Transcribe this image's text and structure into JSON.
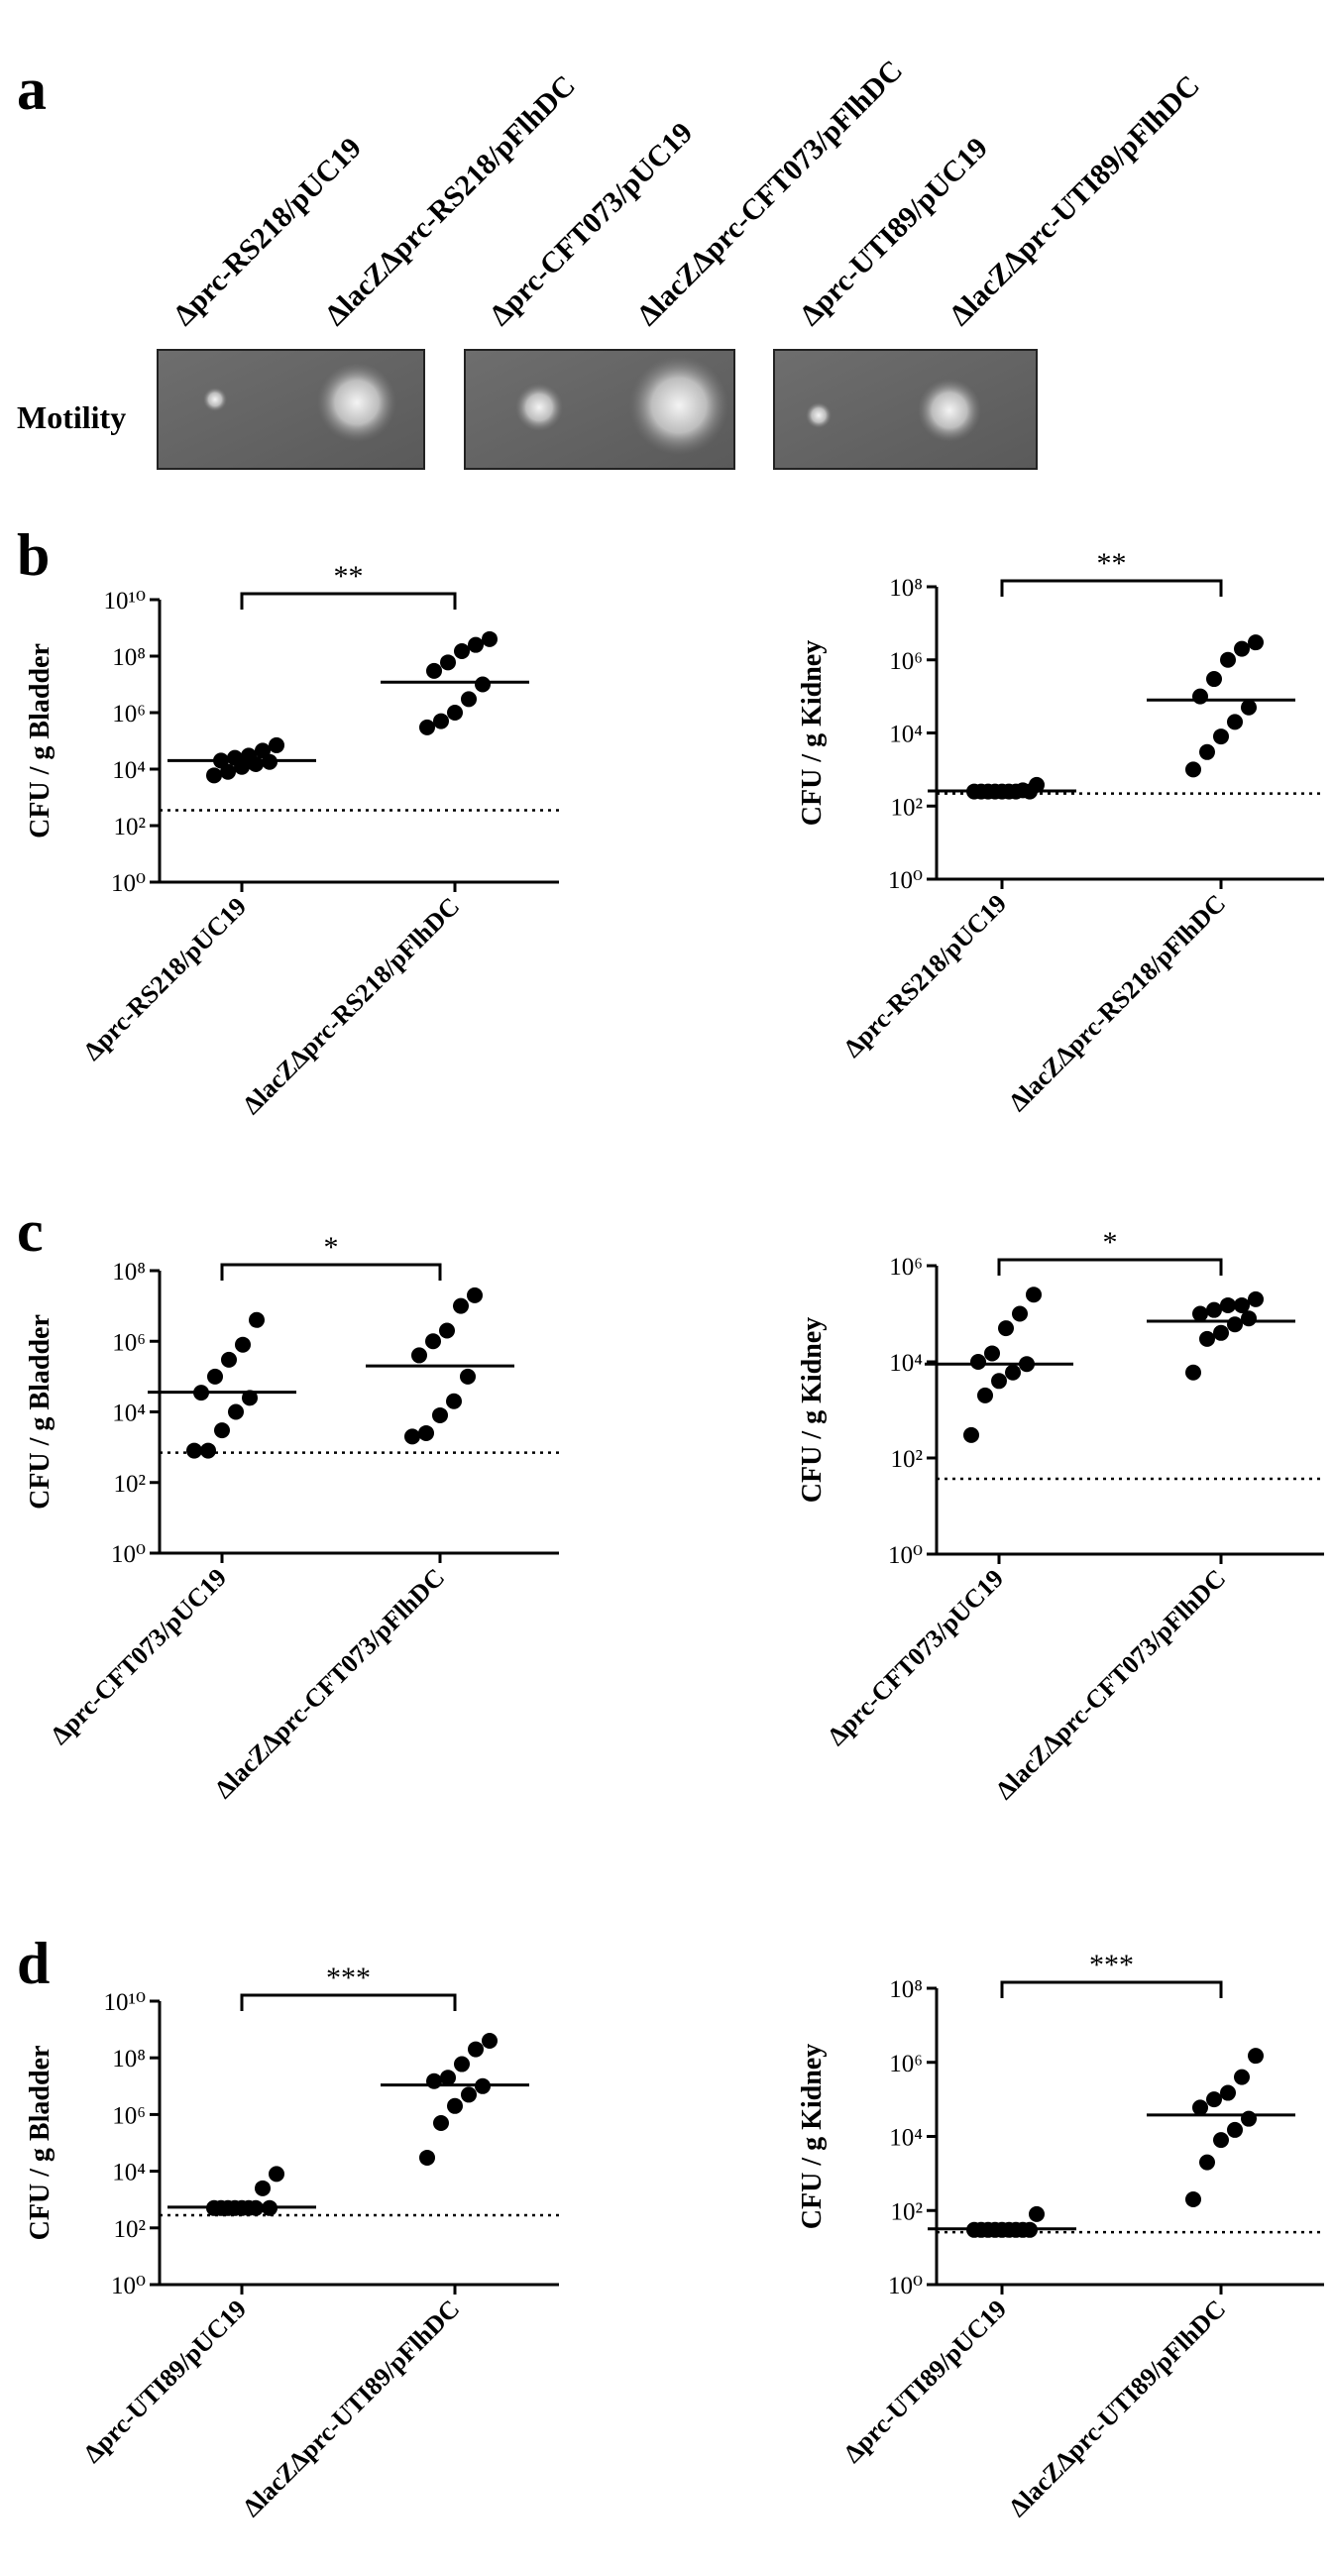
{
  "panel_a": {
    "letter": "a",
    "row_label": "Motility",
    "strains": [
      "Δprc-RS218/pUC19",
      "ΔlacZΔprc-RS218/pFlhDC",
      "Δprc-CFT073/pUC19",
      "ΔlacZΔprc-CFT073/pFlhDC",
      "Δprc-UTI89/pUC19",
      "ΔlacZΔprc-UTI89/pFlhDC"
    ]
  },
  "panel_labels": [
    "b",
    "c",
    "d"
  ],
  "chart_data": [
    {
      "type": "dot",
      "ylabel": "CFU / g Bladder",
      "log_scale": true,
      "color": "#000000",
      "categories": [
        "Δprc-RS218/pUC19",
        "ΔlacZΔprc-RS218/pFlhDC"
      ],
      "values": [
        [
          6000,
          8000,
          12000,
          15000,
          18000,
          20000,
          25000,
          30000,
          45000,
          70000
        ],
        [
          300000,
          500000,
          1000000,
          3000000,
          10000000,
          30000000,
          60000000,
          150000000,
          250000000,
          400000000
        ]
      ],
      "medians": [
        20000,
        12000000
      ],
      "detection_limit": 350,
      "significance": "**",
      "ylim": [
        1,
        10000000000
      ],
      "yticks": [
        {
          "value": 1,
          "label": "10⁰"
        },
        {
          "value": 100,
          "label": "10²"
        },
        {
          "value": 10000,
          "label": "10⁴"
        },
        {
          "value": 1000000,
          "label": "10⁶"
        },
        {
          "value": 100000000,
          "label": "10⁸"
        },
        {
          "value": 10000000000,
          "label": "10¹⁰"
        }
      ]
    },
    {
      "type": "dot",
      "ylabel": "CFU / g Kidney",
      "log_scale": true,
      "color": "#000000",
      "categories": [
        "Δprc-RS218/pUC19",
        "ΔlacZΔprc-RS218/pFlhDC"
      ],
      "values": [
        [
          250,
          250,
          250,
          250,
          250,
          250,
          250,
          250,
          270,
          380
        ],
        [
          1000,
          3000,
          8000,
          20000,
          50000,
          100000,
          300000,
          1000000,
          2000000,
          3000000
        ]
      ],
      "medians": [
        260,
        80000
      ],
      "detection_limit": 220,
      "significance": "**",
      "ylim": [
        1,
        100000000
      ],
      "yticks": [
        {
          "value": 1,
          "label": "10⁰"
        },
        {
          "value": 100,
          "label": "10²"
        },
        {
          "value": 10000,
          "label": "10⁴"
        },
        {
          "value": 1000000,
          "label": "10⁶"
        },
        {
          "value": 100000000,
          "label": "10⁸"
        }
      ]
    },
    {
      "type": "dot",
      "ylabel": "CFU / g Bladder",
      "log_scale": true,
      "color": "#000000",
      "categories": [
        "Δprc-CFT073/pUC19",
        "ΔlacZΔprc-CFT073/pFlhDC"
      ],
      "values": [
        [
          800,
          800,
          3000,
          10000,
          25000,
          35000,
          100000,
          300000,
          800000,
          4000000
        ],
        [
          2000,
          2500,
          8000,
          20000,
          100000,
          400000,
          1000000,
          2000000,
          10000000,
          20000000
        ]
      ],
      "medians": [
        36000,
        200000
      ],
      "detection_limit": 700,
      "significance": "*",
      "ylim": [
        1,
        100000000
      ],
      "yticks": [
        {
          "value": 1,
          "label": "10⁰"
        },
        {
          "value": 100,
          "label": "10²"
        },
        {
          "value": 10000,
          "label": "10⁴"
        },
        {
          "value": 1000000,
          "label": "10⁶"
        },
        {
          "value": 100000000,
          "label": "10⁸"
        }
      ]
    },
    {
      "type": "dot",
      "ylabel": "CFU / g Kidney",
      "log_scale": true,
      "color": "#000000",
      "categories": [
        "Δprc-CFT073/pUC19",
        "ΔlacZΔprc-CFT073/pFlhDC"
      ],
      "values": [
        [
          300,
          2000,
          4000,
          6000,
          9000,
          10000,
          15000,
          50000,
          100000,
          250000
        ],
        [
          6000,
          30000,
          40000,
          60000,
          80000,
          100000,
          120000,
          150000,
          150000,
          200000
        ]
      ],
      "medians": [
        9000,
        70000
      ],
      "detection_limit": 37,
      "significance": "*",
      "ylim": [
        1,
        1000000
      ],
      "yticks": [
        {
          "value": 1,
          "label": "10⁰"
        },
        {
          "value": 100,
          "label": "10²"
        },
        {
          "value": 10000,
          "label": "10⁴"
        },
        {
          "value": 1000000,
          "label": "10⁶"
        }
      ]
    },
    {
      "type": "dot",
      "ylabel": "CFU / g Bladder",
      "log_scale": true,
      "color": "#000000",
      "categories": [
        "Δprc-UTI89/pUC19",
        "ΔlacZΔprc-UTI89/pFlhDC"
      ],
      "values": [
        [
          500,
          500,
          500,
          500,
          500,
          500,
          500,
          500,
          2500,
          8000
        ],
        [
          30000,
          500000,
          2000000,
          5000000,
          10000000,
          15000000,
          20000000,
          60000000,
          200000000,
          400000000
        ]
      ],
      "medians": [
        540,
        11000000
      ],
      "detection_limit": 280,
      "significance": "***",
      "ylim": [
        1,
        10000000000
      ],
      "yticks": [
        {
          "value": 1,
          "label": "10⁰"
        },
        {
          "value": 100,
          "label": "10²"
        },
        {
          "value": 10000,
          "label": "10⁴"
        },
        {
          "value": 1000000,
          "label": "10⁶"
        },
        {
          "value": 100000000,
          "label": "10⁸"
        },
        {
          "value": 10000000000,
          "label": "10¹⁰"
        }
      ]
    },
    {
      "type": "dot",
      "ylabel": "CFU / g Kidney",
      "log_scale": true,
      "color": "#000000",
      "categories": [
        "Δprc-UTI89/pUC19",
        "ΔlacZΔprc-UTI89/pFlhDC"
      ],
      "values": [
        [
          30,
          30,
          30,
          30,
          30,
          30,
          30,
          30,
          30,
          80
        ],
        [
          200,
          2000,
          8000,
          15000,
          30000,
          60000,
          100000,
          150000,
          400000,
          1500000
        ]
      ],
      "medians": [
        32,
        38000
      ],
      "detection_limit": 26,
      "significance": "***",
      "ylim": [
        1,
        100000000
      ],
      "yticks": [
        {
          "value": 1,
          "label": "10⁰"
        },
        {
          "value": 100,
          "label": "10²"
        },
        {
          "value": 10000,
          "label": "10⁴"
        },
        {
          "value": 1000000,
          "label": "10⁶"
        },
        {
          "value": 100000000,
          "label": "10⁸"
        }
      ]
    }
  ]
}
